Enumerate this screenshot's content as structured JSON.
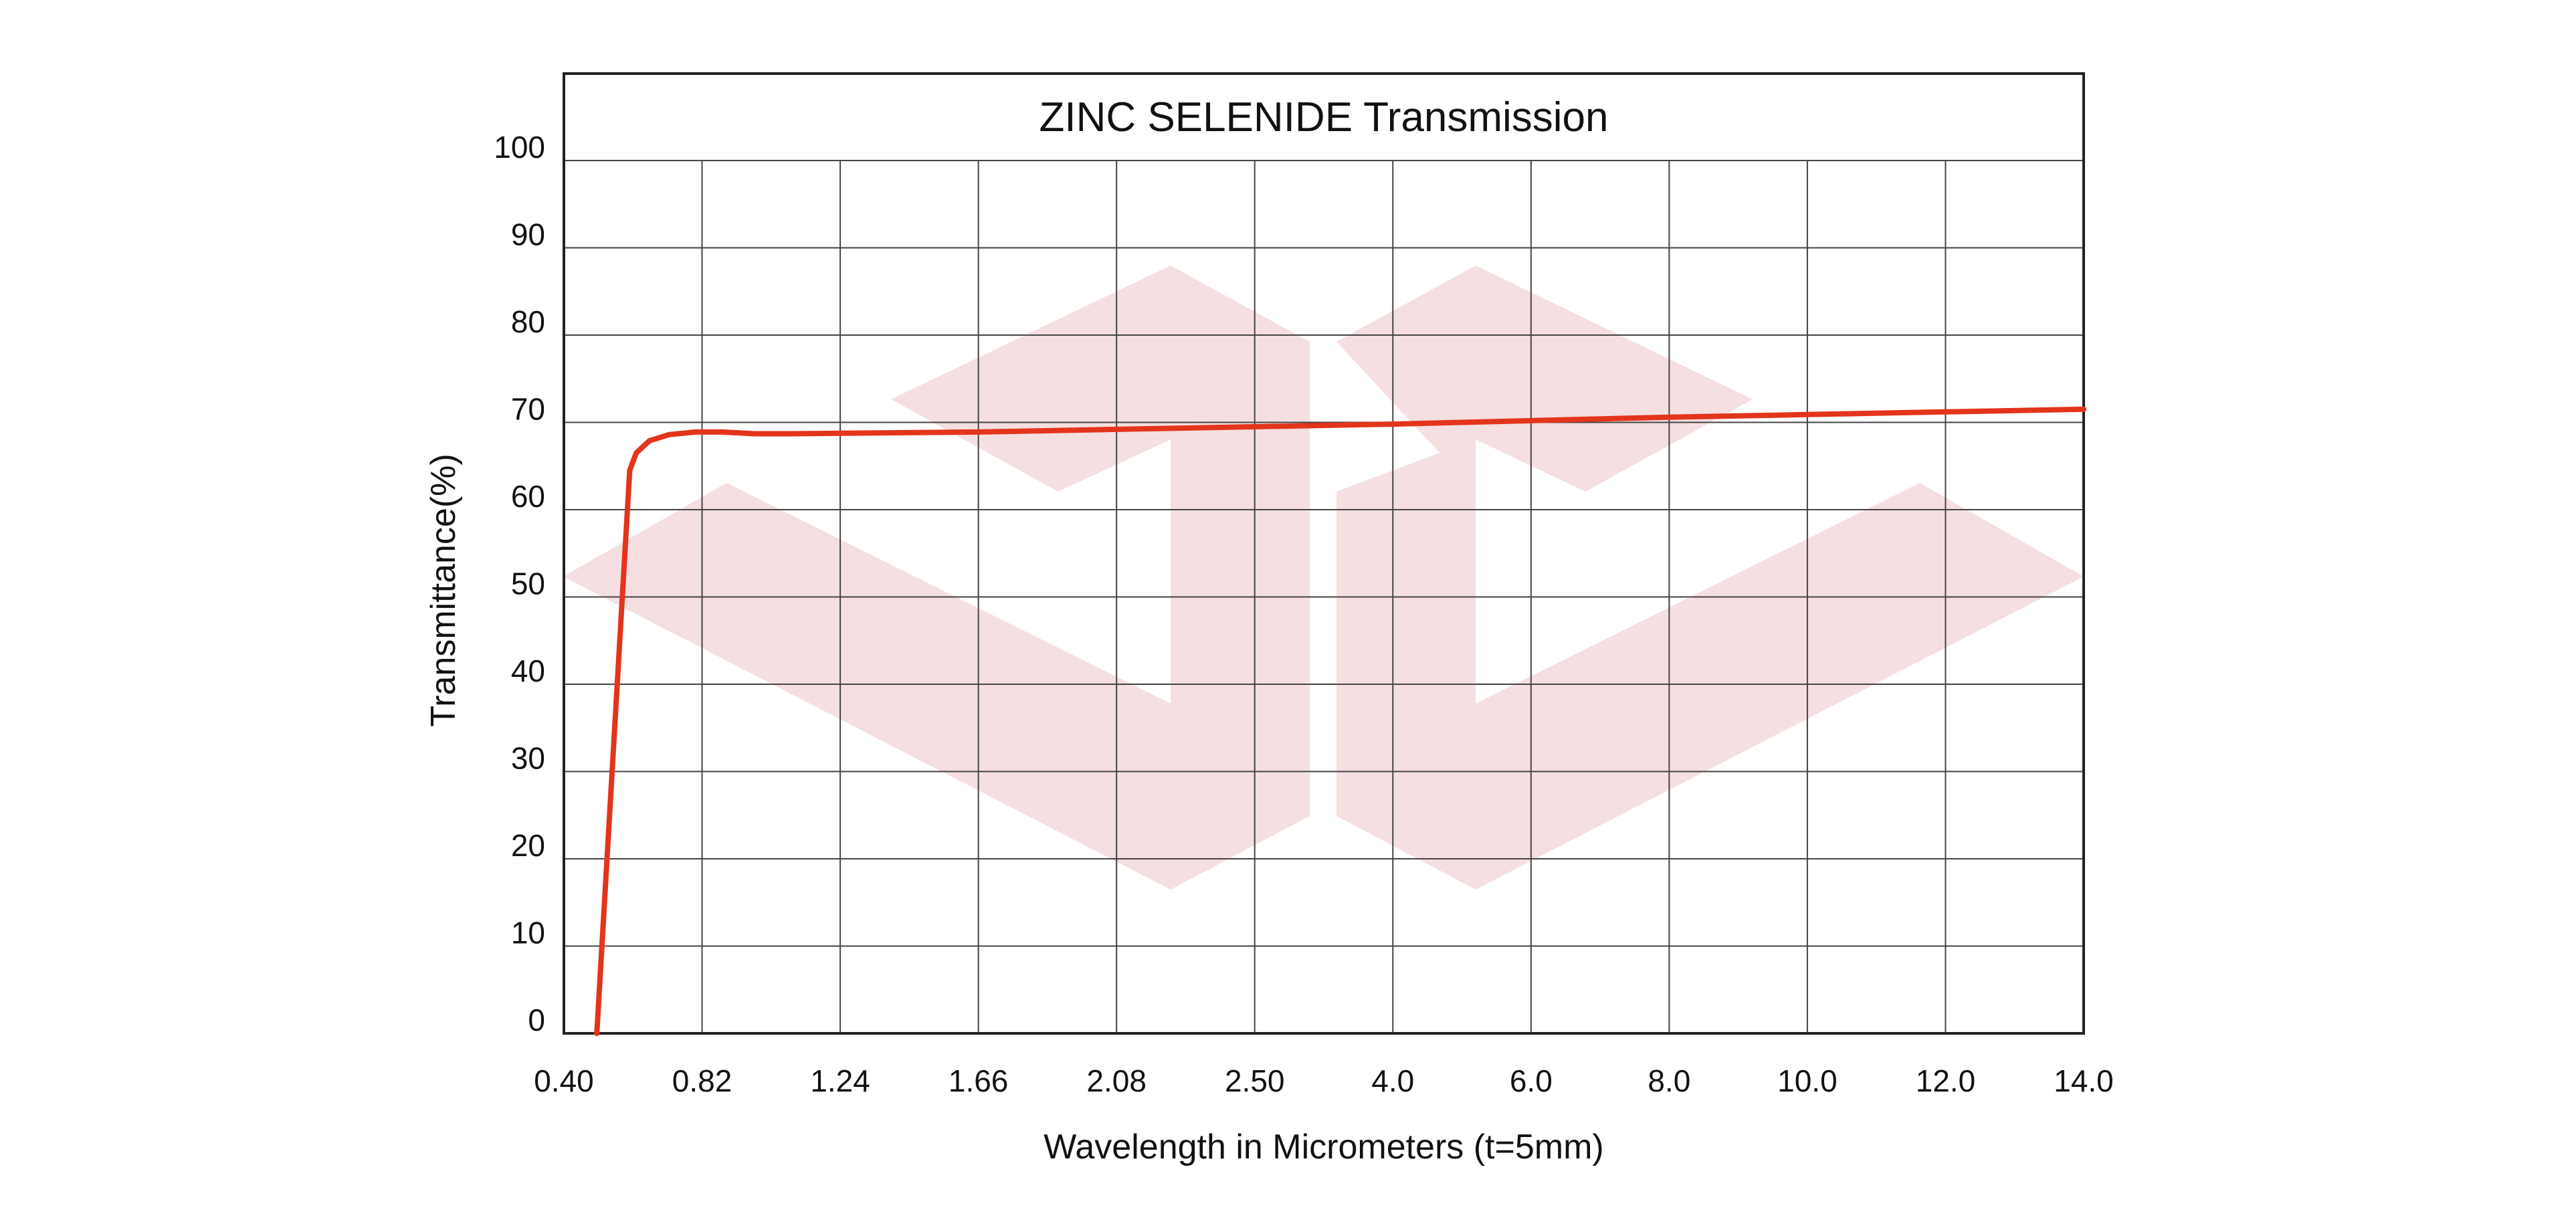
{
  "chart_data": {
    "type": "line",
    "title": "ZINC SELENIDE Transmission",
    "xlabel": "Wavelength in Micrometers (t=5mm)",
    "ylabel": "Transmittance(%)",
    "x_ticks": [
      "0.40",
      "0.82",
      "1.24",
      "1.66",
      "2.08",
      "2.50",
      "4.0",
      "6.0",
      "8.0",
      "10.0",
      "12.0",
      "14.0"
    ],
    "x_ticks_note": "non-uniform axis: equal spacing between listed ticks",
    "y_ticks": [
      "0",
      "10",
      "20",
      "30",
      "40",
      "50",
      "60",
      "70",
      "80",
      "90",
      "100"
    ],
    "ylim": [
      0,
      100
    ],
    "grid": true,
    "series": [
      {
        "color": "#e3341c",
        "x": [
          0.5,
          0.6,
          0.62,
          0.66,
          0.72,
          0.8,
          0.88,
          0.98,
          1.1,
          1.24,
          1.66,
          2.08,
          2.5,
          4.0,
          6.0,
          8.0,
          10.0,
          12.0,
          14.0
        ],
        "y": [
          0,
          64.5,
          66.5,
          67.9,
          68.6,
          68.9,
          68.9,
          68.7,
          68.7,
          68.75,
          68.9,
          69.2,
          69.5,
          69.8,
          70.2,
          70.6,
          70.9,
          71.2,
          71.5
        ]
      }
    ]
  },
  "colors": {
    "line": "#e3341c",
    "grid": "#444444",
    "watermark": "#f5dfe0"
  }
}
